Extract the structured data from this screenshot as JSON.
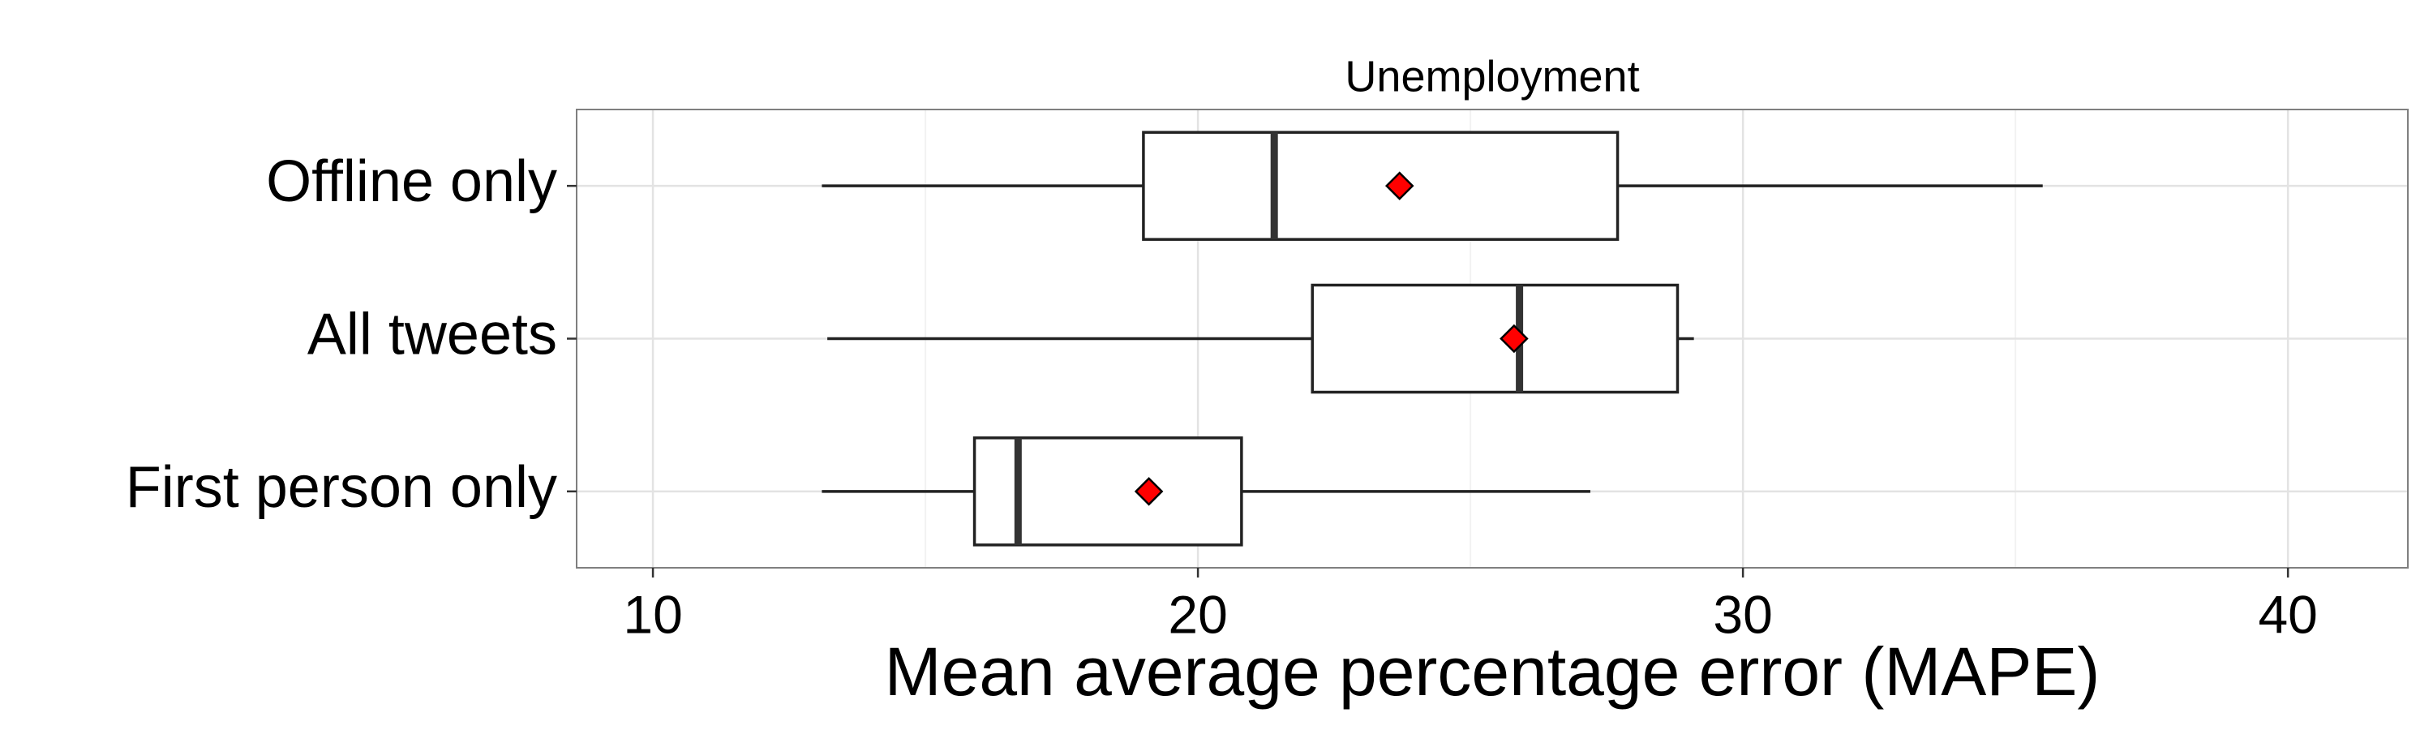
{
  "chart_data": {
    "type": "box",
    "title": "Unemployment",
    "x_label": "Mean average percentage error (MAPE)",
    "categories": [
      "Offline only",
      "All tweets",
      "First person only"
    ],
    "stats": [
      {
        "min": 13.1,
        "q1": 19.0,
        "median": 21.4,
        "q3": 27.7,
        "max": 35.5,
        "mean": 23.7
      },
      {
        "min": 13.2,
        "q1": 22.1,
        "median": 25.9,
        "q3": 28.8,
        "max": 29.1,
        "mean": 25.8
      },
      {
        "min": 13.1,
        "q1": 15.9,
        "median": 16.7,
        "q3": 20.8,
        "max": 27.2,
        "mean": 19.1
      }
    ],
    "box_color": "#ffffff",
    "mean_color": "#ff0000",
    "xlim": [
      8.6,
      42.2
    ],
    "xticks": [
      10,
      20,
      30,
      40
    ],
    "xminorticks": [
      15,
      25,
      35
    ],
    "grid": true
  }
}
